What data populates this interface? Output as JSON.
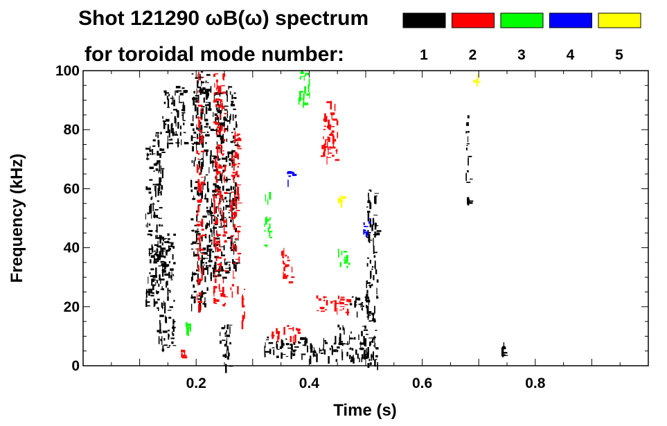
{
  "header": {
    "title_line1": "Shot 121290 ωB(ω) spectrum",
    "title_line2": "for toroidal mode number:"
  },
  "chart_data": {
    "type": "heatmap",
    "xlabel": "Time (s)",
    "ylabel": "Frequency (kHz)",
    "xlim": [
      0.0,
      1.0
    ],
    "ylim": [
      0,
      100
    ],
    "x_ticks": [
      {
        "value": 0.2,
        "label": "0.2"
      },
      {
        "value": 0.4,
        "label": "0.4"
      },
      {
        "value": 0.6,
        "label": "0.6"
      },
      {
        "value": 0.8,
        "label": "0.8"
      }
    ],
    "y_ticks": [
      {
        "value": 0,
        "label": "0"
      },
      {
        "value": 20,
        "label": "20"
      },
      {
        "value": 40,
        "label": "40"
      },
      {
        "value": 60,
        "label": "60"
      },
      {
        "value": 80,
        "label": "80"
      },
      {
        "value": 100,
        "label": "100"
      }
    ],
    "grid": false,
    "legend": [
      {
        "n": "1",
        "color": "#000000"
      },
      {
        "n": "2",
        "color": "#ff0000"
      },
      {
        "n": "3",
        "color": "#00ff00"
      },
      {
        "n": "4",
        "color": "#0000ff"
      },
      {
        "n": "5",
        "color": "#ffff00"
      }
    ],
    "regions": [
      {
        "mode": 1,
        "t": [
          0.11,
          0.14
        ],
        "f": [
          20,
          80
        ]
      },
      {
        "mode": 1,
        "t": [
          0.14,
          0.18
        ],
        "f": [
          75,
          95
        ]
      },
      {
        "mode": 1,
        "t": [
          0.13,
          0.16
        ],
        "f": [
          5,
          45
        ]
      },
      {
        "mode": 1,
        "t": [
          0.19,
          0.22
        ],
        "f": [
          20,
          100
        ]
      },
      {
        "mode": 1,
        "t": [
          0.22,
          0.27
        ],
        "f": [
          30,
          95
        ]
      },
      {
        "mode": 1,
        "t": [
          0.24,
          0.26
        ],
        "f": [
          0,
          15
        ]
      },
      {
        "mode": 1,
        "t": [
          0.32,
          0.44
        ],
        "f": [
          3,
          10
        ]
      },
      {
        "mode": 1,
        "t": [
          0.44,
          0.5
        ],
        "f": [
          2,
          14
        ]
      },
      {
        "mode": 1,
        "t": [
          0.47,
          0.5
        ],
        "f": [
          18,
          25
        ]
      },
      {
        "mode": 1,
        "t": [
          0.5,
          0.52
        ],
        "f": [
          0,
          60
        ]
      },
      {
        "mode": 1,
        "t": [
          0.676,
          0.684
        ],
        "f": [
          55,
          85
        ]
      },
      {
        "mode": 1,
        "t": [
          0.74,
          0.745
        ],
        "f": [
          2,
          8
        ]
      },
      {
        "mode": 2,
        "t": [
          0.2,
          0.21
        ],
        "f": [
          20,
          100
        ]
      },
      {
        "mode": 2,
        "t": [
          0.23,
          0.25
        ],
        "f": [
          20,
          100
        ]
      },
      {
        "mode": 2,
        "t": [
          0.26,
          0.275
        ],
        "f": [
          25,
          80
        ]
      },
      {
        "mode": 2,
        "t": [
          0.28,
          0.285
        ],
        "f": [
          15,
          30
        ]
      },
      {
        "mode": 2,
        "t": [
          0.35,
          0.37
        ],
        "f": [
          28,
          40
        ]
      },
      {
        "mode": 2,
        "t": [
          0.42,
          0.45
        ],
        "f": [
          70,
          90
        ]
      },
      {
        "mode": 2,
        "t": [
          0.41,
          0.47
        ],
        "f": [
          18,
          24
        ]
      },
      {
        "mode": 2,
        "t": [
          0.33,
          0.38
        ],
        "f": [
          10,
          14
        ]
      },
      {
        "mode": 2,
        "t": [
          0.17,
          0.18
        ],
        "f": [
          3,
          6
        ]
      },
      {
        "mode": 3,
        "t": [
          0.32,
          0.33
        ],
        "f": [
          40,
          60
        ]
      },
      {
        "mode": 3,
        "t": [
          0.38,
          0.4
        ],
        "f": [
          88,
          100
        ]
      },
      {
        "mode": 3,
        "t": [
          0.45,
          0.47
        ],
        "f": [
          33,
          40
        ]
      },
      {
        "mode": 3,
        "t": [
          0.18,
          0.19
        ],
        "f": [
          13,
          16
        ]
      },
      {
        "mode": 4,
        "t": [
          0.49,
          0.51
        ],
        "f": [
          45,
          50
        ]
      },
      {
        "mode": 4,
        "t": [
          0.36,
          0.37
        ],
        "f": [
          63,
          66
        ]
      },
      {
        "mode": 5,
        "t": [
          0.45,
          0.46
        ],
        "f": [
          55,
          58
        ]
      },
      {
        "mode": 5,
        "t": [
          0.69,
          0.7
        ],
        "f": [
          96,
          99
        ]
      }
    ]
  }
}
